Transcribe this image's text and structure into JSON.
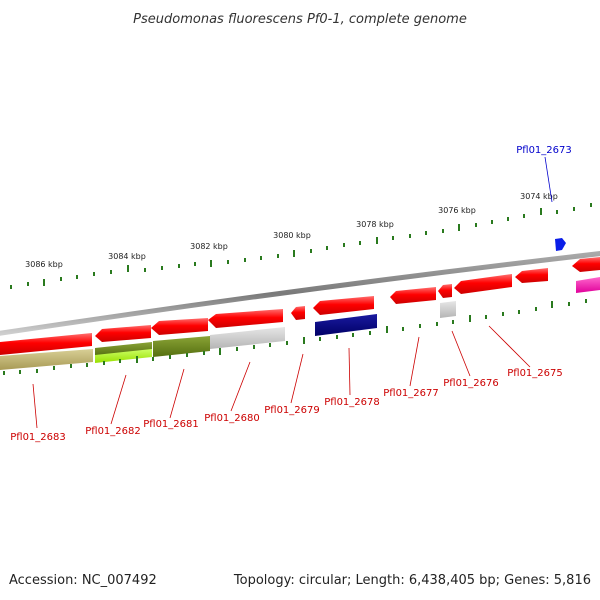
{
  "title": "Pseudomonas fluorescens Pf0-1, complete genome",
  "footer": {
    "accession": "Accession: NC_007492",
    "topology": "Topology: circular; Length: 6,438,405 bp; Genes: 5,816"
  },
  "colors": {
    "backbone": "#888888",
    "tick": "#2a7a1e",
    "label_red": "#cc0000",
    "label_blue": "#0000cc"
  },
  "scale_labels": [
    "3086 kbp",
    "3084 kbp",
    "3082 kbp",
    "3080 kbp",
    "3078 kbp",
    "3076 kbp",
    "3074 kbp"
  ],
  "features": [
    {
      "name": "Pfl01_2683",
      "strand": "forward-track",
      "color": "#ff1a1a"
    },
    {
      "name": "Pfl01_2682",
      "strand": "forward-track",
      "color": "#ff1a1a"
    },
    {
      "name": "Pfl01_2681",
      "strand": "forward-track",
      "color": "#ff1a1a"
    },
    {
      "name": "Pfl01_2680",
      "strand": "forward-track",
      "color": "#ff1a1a"
    },
    {
      "name": "Pfl01_2679",
      "strand": "forward-track",
      "color": "#ff1a1a"
    },
    {
      "name": "Pfl01_2678",
      "strand": "forward-track",
      "color": "#ff1a1a"
    },
    {
      "name": "Pfl01_2677",
      "strand": "forward-track",
      "color": "#ff1a1a"
    },
    {
      "name": "Pfl01_2676",
      "strand": "forward-track",
      "color": "#ff1a1a"
    },
    {
      "name": "Pfl01_2675",
      "strand": "forward-track",
      "color": "#ff1a1a"
    },
    {
      "name": "Pfl01_2673",
      "strand": "reverse-track",
      "color": "#0a1ee8"
    }
  ],
  "cog_colors": [
    "#b8ad6e",
    "#6f8a1a",
    "#aaee22",
    "#cccccc",
    "#000080",
    "#cccccc",
    "#ff33aa"
  ]
}
